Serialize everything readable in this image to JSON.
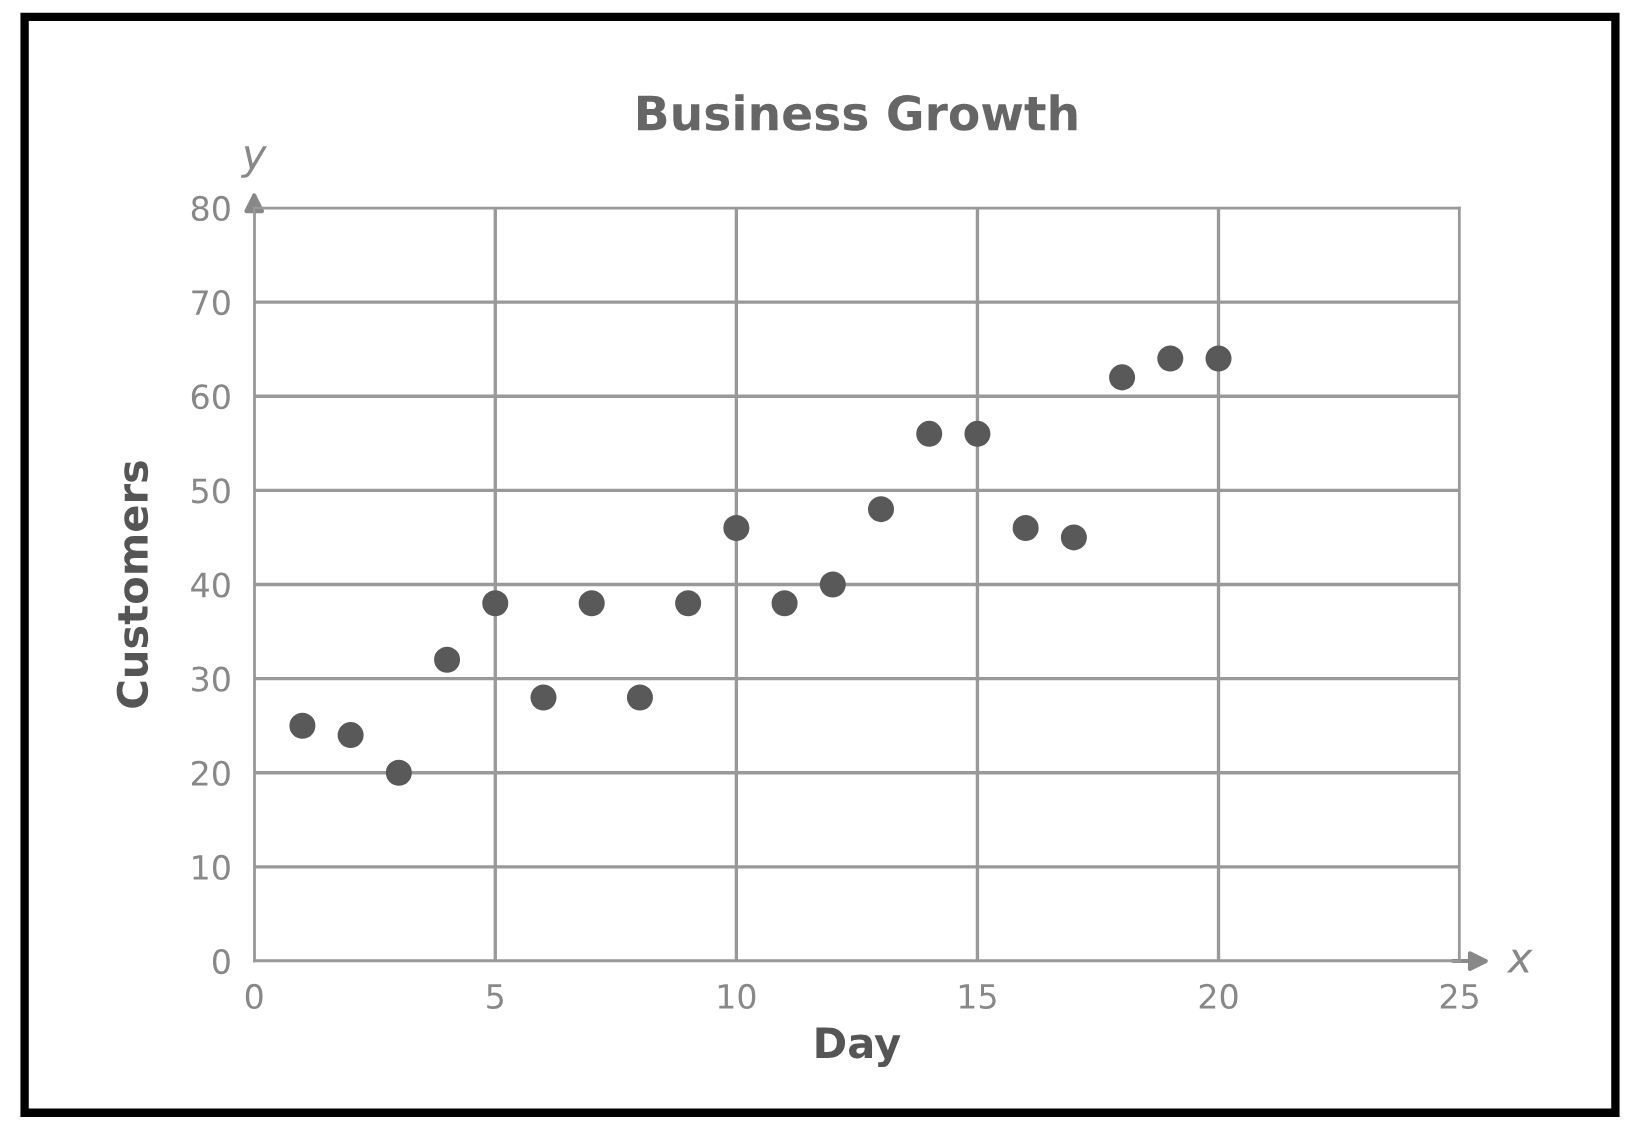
{
  "chart_data": {
    "type": "scatter",
    "title": "Business Growth",
    "xlabel": "Day",
    "ylabel": "Customers",
    "annotations": [
      "x",
      "y"
    ],
    "x": [
      1,
      2,
      3,
      4,
      5,
      6,
      7,
      8,
      9,
      10,
      11,
      12,
      13,
      14,
      15,
      16,
      17,
      18,
      19,
      20
    ],
    "series": [
      {
        "color": "#595959",
        "values": [
          25,
          24,
          20,
          32,
          38,
          28,
          38,
          28,
          38,
          46,
          38,
          40,
          48,
          56,
          56,
          46,
          45,
          62,
          64,
          64
        ]
      }
    ],
    "xlim": [
      0,
      25
    ],
    "xticks": [
      0,
      5,
      10,
      15,
      20,
      25
    ],
    "ylim": [
      0,
      80
    ],
    "yticks": [
      0,
      10,
      20,
      30,
      40,
      50,
      60,
      70,
      80
    ],
    "grid": true,
    "marker": "circle"
  }
}
